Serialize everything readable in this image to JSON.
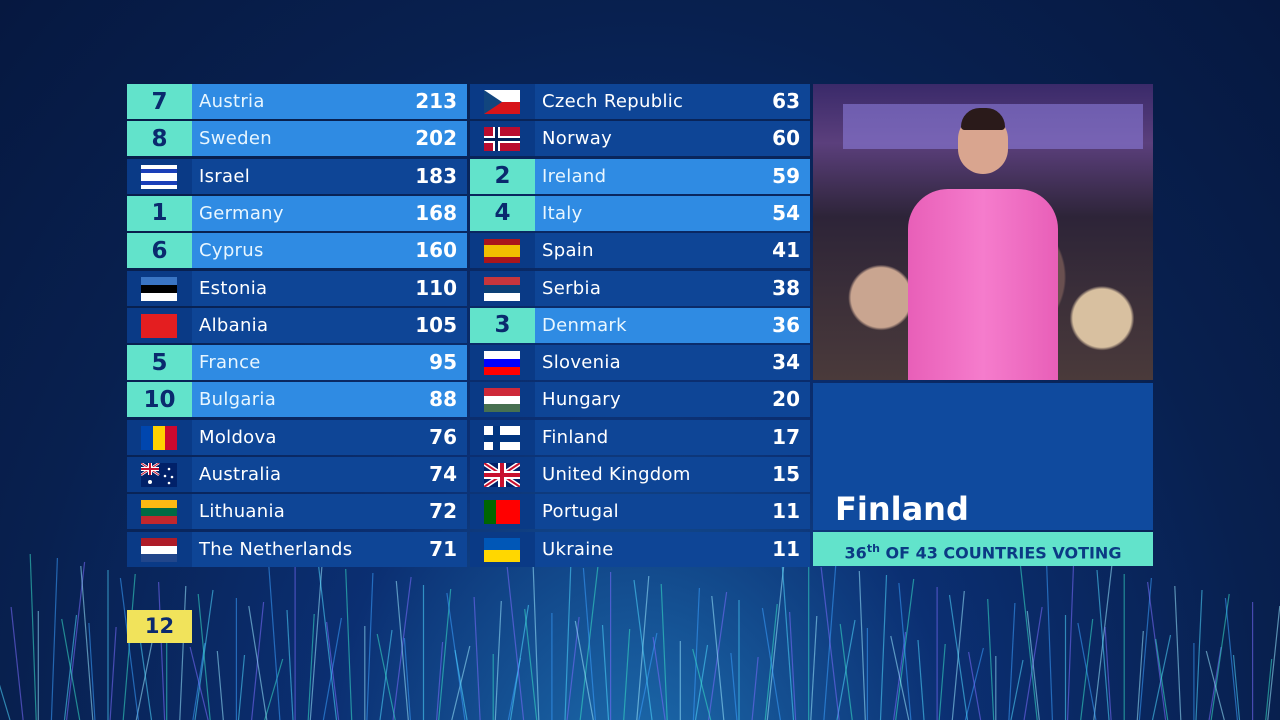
{
  "scoreboard": {
    "left": [
      {
        "points": 7,
        "country": "Austria",
        "score": 213
      },
      {
        "points": 8,
        "country": "Sweden",
        "score": 202
      },
      {
        "country": "Israel",
        "score": 183
      },
      {
        "points": 1,
        "country": "Germany",
        "score": 168
      },
      {
        "points": 6,
        "country": "Cyprus",
        "score": 160
      },
      {
        "country": "Estonia",
        "score": 110
      },
      {
        "country": "Albania",
        "score": 105
      },
      {
        "points": 5,
        "country": "France",
        "score": 95
      },
      {
        "points": 10,
        "country": "Bulgaria",
        "score": 88
      },
      {
        "country": "Moldova",
        "score": 76
      },
      {
        "country": "Australia",
        "score": 74
      },
      {
        "country": "Lithuania",
        "score": 72
      },
      {
        "country": "The Netherlands",
        "score": 71
      }
    ],
    "right": [
      {
        "country": "Czech Republic",
        "score": 63
      },
      {
        "country": "Norway",
        "score": 60
      },
      {
        "points": 2,
        "country": "Ireland",
        "score": 59
      },
      {
        "points": 4,
        "country": "Italy",
        "score": 54
      },
      {
        "country": "Spain",
        "score": 41
      },
      {
        "country": "Serbia",
        "score": 38
      },
      {
        "points": 3,
        "country": "Denmark",
        "score": 36
      },
      {
        "country": "Slovenia",
        "score": 34
      },
      {
        "country": "Hungary",
        "score": 20
      },
      {
        "country": "Finland",
        "score": 17
      },
      {
        "country": "United Kingdom",
        "score": 15
      },
      {
        "country": "Portugal",
        "score": 11
      },
      {
        "country": "Ukraine",
        "score": 11
      }
    ]
  },
  "spokesperson": {
    "country": "Finland",
    "rank": 36,
    "rank_suffix": "th",
    "caption": "OF 43 COUNTRIES VOTING"
  },
  "next_points": 12
}
